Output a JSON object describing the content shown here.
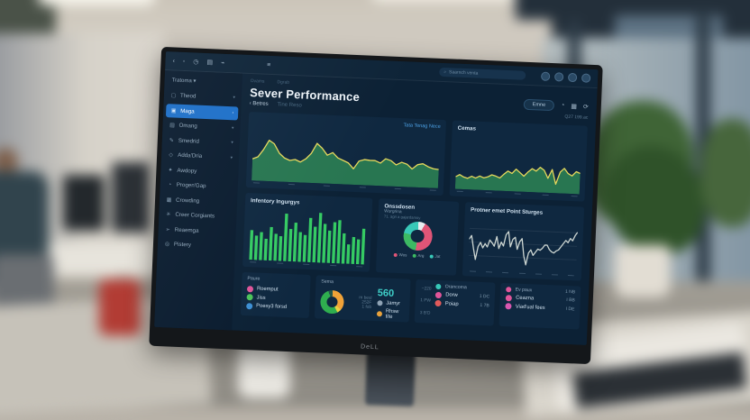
{
  "scene": {
    "monitor_brand": "DeLL"
  },
  "topbar": {
    "icons": [
      "‹",
      "◦",
      "◷",
      "▤",
      "⌁",
      "≡"
    ],
    "search_text": "Saarnch venta",
    "search_icon": "🔍"
  },
  "sidebar": {
    "brand": "Tratoma",
    "brand_chev": "▾",
    "items": [
      {
        "label": "Theod",
        "icon": "▢",
        "chev": "▾"
      },
      {
        "label": "Maga",
        "icon": "▣",
        "chev": "›",
        "selected": true
      },
      {
        "label": "Omang",
        "icon": "▤",
        "chev": "▾"
      },
      {
        "label": "Smedrid",
        "icon": "✎",
        "chev": "▾"
      },
      {
        "label": "Adda'Dria",
        "icon": "◇",
        "chev": "▾"
      },
      {
        "label": "Awdopy",
        "icon": "✦",
        "chev": ""
      },
      {
        "label": "Progen'Gap",
        "icon": "◔",
        "chev": ""
      },
      {
        "label": "Crowding",
        "icon": "▦",
        "chev": ""
      },
      {
        "label": "Creer Corgiants",
        "icon": "✳",
        "chev": ""
      },
      {
        "label": "Reaemga",
        "icon": "➢",
        "chev": ""
      },
      {
        "label": "Pistery",
        "icon": "◎",
        "chev": ""
      }
    ]
  },
  "header": {
    "tabs": [
      "Ovams",
      "Dgrab"
    ],
    "title": "Sever Performance",
    "back_icon": "‹",
    "back_label": "Betres",
    "hint": "Tine Reso",
    "action_button": "Emne",
    "action_icons": [
      "◔",
      "▦",
      "⟳"
    ],
    "meta": "Q27 199.ac"
  },
  "accent_colors": {
    "selected_blue": "#1d6fc8",
    "panel": "#0f2840",
    "screen_bg": "#0c2135",
    "teal_number": "#3fd0c9",
    "link_blue": "#4da3e8"
  },
  "chart_data": [
    {
      "id": "area-left",
      "type": "area",
      "label": "Tata Tenag Nece",
      "values": [
        38,
        42,
        55,
        72,
        66,
        50,
        42,
        38,
        40,
        36,
        42,
        52,
        70,
        62,
        50,
        55,
        46,
        42,
        38,
        28,
        42,
        45,
        44,
        44,
        40,
        48,
        45,
        38,
        43,
        40,
        32,
        40,
        42,
        37,
        34,
        33
      ],
      "ylim": [
        0,
        100
      ],
      "fill": "#2e8a55",
      "stroke": "#e6d85c"
    },
    {
      "id": "area-right",
      "type": "area",
      "title": "Cemas",
      "values": [
        22,
        26,
        22,
        20,
        24,
        21,
        25,
        22,
        24,
        28,
        26,
        23,
        30,
        36,
        32,
        40,
        34,
        28,
        36,
        42,
        38,
        45,
        40,
        26,
        42,
        16,
        38,
        45,
        36,
        32,
        40,
        37
      ],
      "ylim": [
        0,
        100
      ],
      "fill": "#2e8a55",
      "stroke": "#e6d85c"
    },
    {
      "id": "bars",
      "type": "bar",
      "title": "Infentory Ingurgys",
      "values": [
        55,
        45,
        52,
        40,
        62,
        50,
        46,
        88,
        60,
        72,
        55,
        50,
        82,
        66,
        92,
        72,
        60,
        76,
        80,
        56,
        36,
        50,
        46,
        66
      ],
      "ylim": [
        0,
        100
      ],
      "fill": "#35cb63"
    },
    {
      "id": "donut",
      "type": "donut",
      "title": "Onssdosen",
      "subtitle": "Worgrina",
      "note": "71. agri a gajardamoy",
      "values": [
        8,
        44,
        26,
        22
      ],
      "colors": [
        "#e8ecef",
        "#e05577",
        "#3db963",
        "#38c8b8"
      ],
      "legend": [
        "Wos",
        "Arg",
        "Jat"
      ]
    },
    {
      "id": "line",
      "type": "line",
      "title": "Protner emet Point Sturges",
      "grid": true,
      "values": [
        55,
        62,
        38,
        18,
        42,
        50,
        40,
        48,
        42,
        55,
        50,
        44,
        62,
        40,
        52,
        45,
        66,
        72,
        44,
        58,
        62,
        40,
        54,
        60,
        28,
        12,
        34,
        40,
        30,
        36,
        42,
        40,
        44,
        50,
        50,
        42,
        38,
        36,
        40,
        42,
        48,
        54,
        60,
        56,
        64,
        60,
        70,
        76
      ],
      "ylim": [
        0,
        100
      ],
      "stroke": "#cdd6d2"
    },
    {
      "id": "mini-donut",
      "type": "donut",
      "values": [
        36,
        6,
        52,
        6
      ],
      "colors": [
        "#f0a238",
        "#e8d042",
        "#2fae4f",
        "#23564c"
      ]
    }
  ],
  "cards": [
    {
      "title": "Paure",
      "items": [
        {
          "label": "Roemput",
          "color": "#e0559a"
        },
        {
          "label": "Jiss",
          "color": "#4cc35a"
        },
        {
          "label": "Poesy3 forsd",
          "color": "#3d8fd4"
        }
      ]
    },
    {
      "title": "Sema",
      "faint": [
        "m besl",
        "252F",
        "1 fob"
      ],
      "big": "560",
      "items": [
        {
          "label": "Jamyr",
          "color": "#8fa3b5"
        },
        {
          "label": "Rhsw tite",
          "color": "#e8a23c"
        }
      ]
    },
    {
      "title": "Orancoma",
      "title_color": "#38c8b8",
      "faint": [
        "~220",
        "1 PW",
        "3 B'D"
      ],
      "items": [
        {
          "label": "Dorw",
          "value": "1 DC",
          "color": "#e0559a"
        },
        {
          "label": "Poiap",
          "value": "1 7B",
          "color": "#e05a5a"
        }
      ]
    },
    {
      "title": "Ev paux",
      "title_color": "#e0559a",
      "value": "1 NB",
      "items": [
        {
          "label": "Ceazna",
          "value": "I BB",
          "color": "#e0559a"
        },
        {
          "label": "Viad'ual fees",
          "value": "I DE",
          "color": "#d957b0"
        }
      ]
    }
  ]
}
